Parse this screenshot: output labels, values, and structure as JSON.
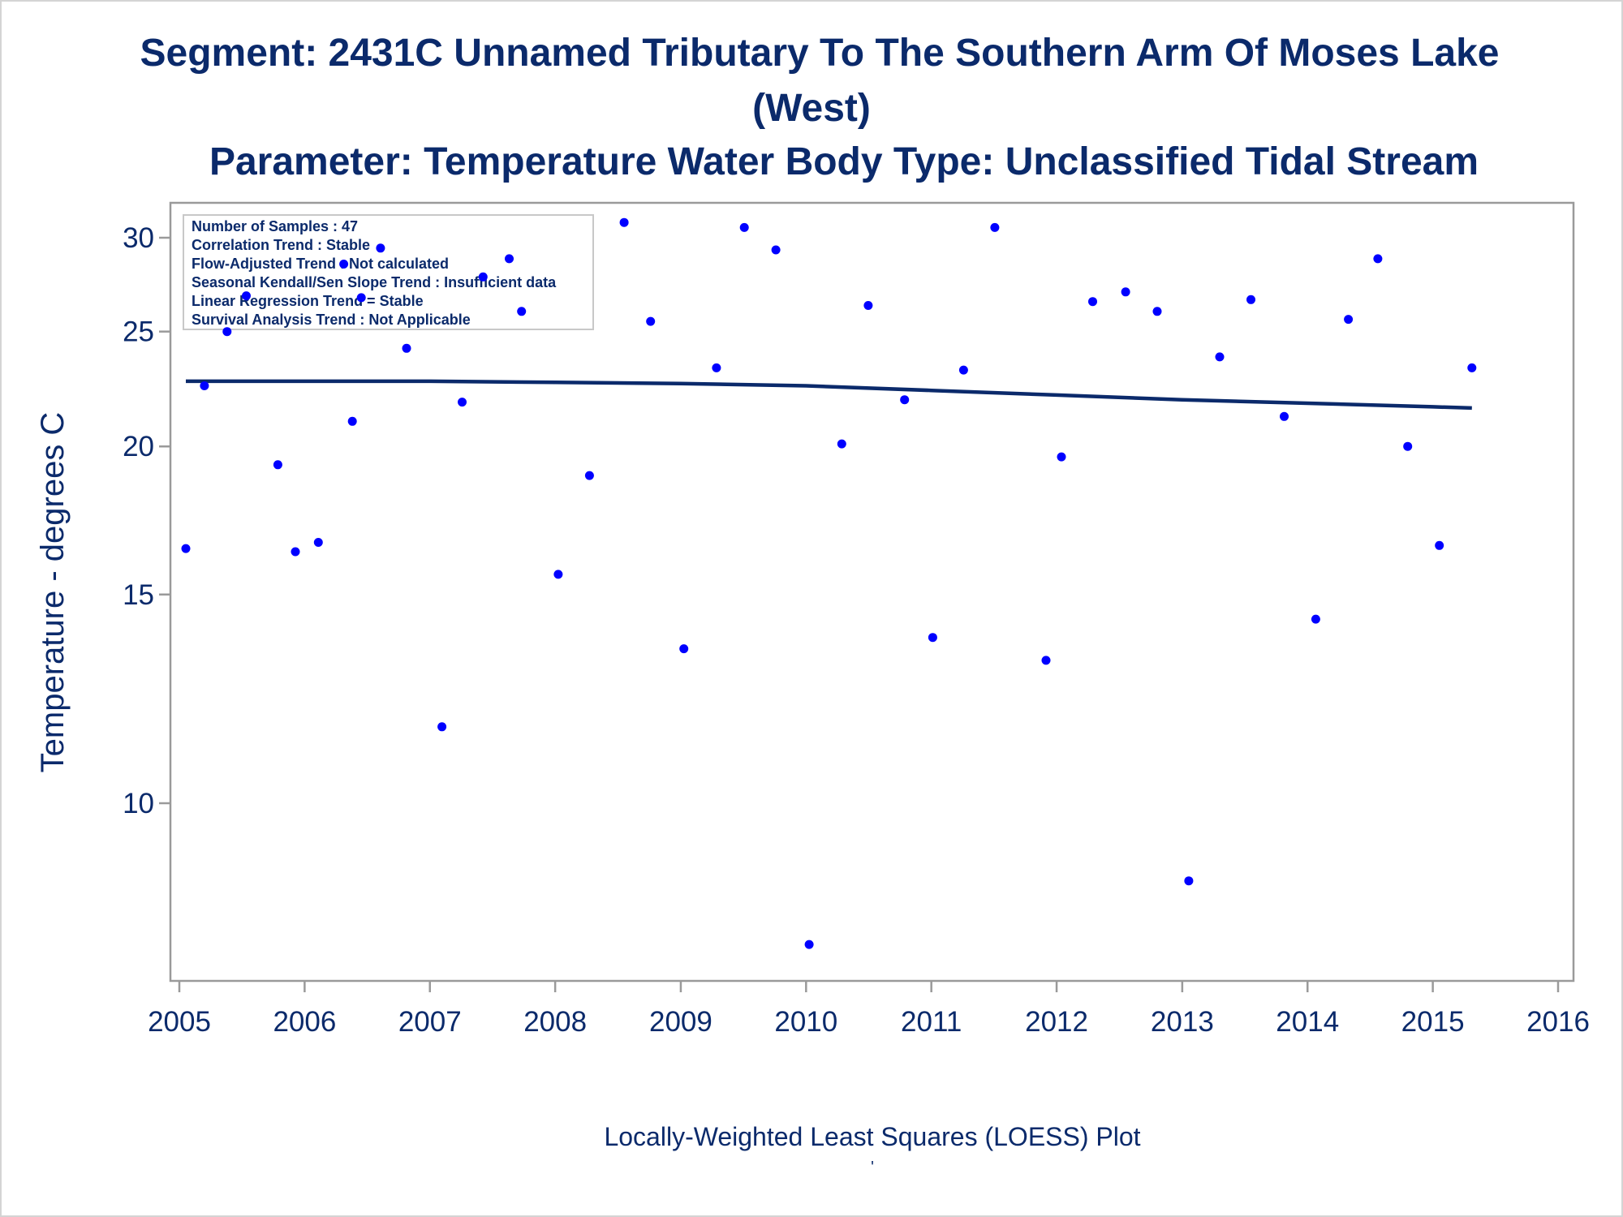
{
  "chart_data": {
    "type": "scatter",
    "title": "Segment: 2431C  Unnamed Tributary To The Southern Arm Of Moses Lake (West)",
    "title_line1": "Segment: 2431C  Unnamed Tributary To The Southern Arm Of Moses Lake",
    "title_line2": "(West)",
    "subtitle": "Parameter: Temperature   Water Body Type: Unclassified Tidal Stream",
    "xlabel": "",
    "ylabel": "Temperature - degrees C",
    "footnote": "Locally-Weighted Least Squares (LOESS) Plot",
    "footnote_mark": "'",
    "x_axis": {
      "type": "date",
      "range": [
        "2005-01-01",
        "2016-01-01"
      ],
      "ticks": [
        "2005",
        "2006",
        "2007",
        "2008",
        "2009",
        "2010",
        "2011",
        "2012",
        "2013",
        "2014",
        "2015",
        "2016"
      ]
    },
    "y_axis": {
      "scale": "log",
      "range": [
        7.3,
        31.5
      ],
      "ticks": [
        10,
        15,
        20,
        25,
        30
      ]
    },
    "grid": false,
    "legend": "none",
    "colors": {
      "points": "#0000ff",
      "trend_line": "#0b2a6b",
      "text": "#0b2a6b",
      "axes": "#9a9a9a"
    },
    "info_box": {
      "placement": "top-left",
      "lines": [
        "Number of Samples : 47",
        "Correlation Trend : Stable",
        "Flow-Adjusted Trend : Not calculated",
        "Seasonal Kendall/Sen Slope Trend : Insufficient data",
        "Linear Regression Trend = Stable",
        "Survival Analysis Trend : Not Applicable"
      ]
    },
    "series": [
      {
        "type": "scatter",
        "points": [
          {
            "x": "2005-01-20",
            "y": 16.4
          },
          {
            "x": "2005-03-15",
            "y": 22.5
          },
          {
            "x": "2005-05-20",
            "y": 25.0
          },
          {
            "x": "2005-07-15",
            "y": 26.8
          },
          {
            "x": "2005-10-15",
            "y": 19.3
          },
          {
            "x": "2005-12-05",
            "y": 16.3
          },
          {
            "x": "2006-02-10",
            "y": 16.6
          },
          {
            "x": "2006-04-25",
            "y": 28.5
          },
          {
            "x": "2006-05-20",
            "y": 21.0
          },
          {
            "x": "2006-06-15",
            "y": 26.7
          },
          {
            "x": "2006-08-10",
            "y": 29.4
          },
          {
            "x": "2006-10-25",
            "y": 24.2
          },
          {
            "x": "2007-02-05",
            "y": 11.6
          },
          {
            "x": "2007-04-05",
            "y": 21.8
          },
          {
            "x": "2007-06-05",
            "y": 27.8
          },
          {
            "x": "2007-08-20",
            "y": 28.8
          },
          {
            "x": "2007-09-25",
            "y": 26.0
          },
          {
            "x": "2008-01-10",
            "y": 15.6
          },
          {
            "x": "2008-04-10",
            "y": 18.9
          },
          {
            "x": "2008-07-20",
            "y": 30.9
          },
          {
            "x": "2008-10-05",
            "y": 25.5
          },
          {
            "x": "2009-01-10",
            "y": 13.5
          },
          {
            "x": "2009-04-15",
            "y": 23.3
          },
          {
            "x": "2009-07-05",
            "y": 30.6
          },
          {
            "x": "2009-10-05",
            "y": 29.3
          },
          {
            "x": "2010-01-10",
            "y": 7.6
          },
          {
            "x": "2010-04-15",
            "y": 20.1
          },
          {
            "x": "2010-07-01",
            "y": 26.3
          },
          {
            "x": "2010-10-15",
            "y": 21.9
          },
          {
            "x": "2011-01-05",
            "y": 13.8
          },
          {
            "x": "2011-04-05",
            "y": 23.2
          },
          {
            "x": "2011-07-05",
            "y": 30.6
          },
          {
            "x": "2011-12-01",
            "y": 13.2
          },
          {
            "x": "2012-01-15",
            "y": 19.6
          },
          {
            "x": "2012-04-15",
            "y": 26.5
          },
          {
            "x": "2012-07-20",
            "y": 27.0
          },
          {
            "x": "2012-10-20",
            "y": 26.0
          },
          {
            "x": "2013-01-20",
            "y": 8.6
          },
          {
            "x": "2013-04-20",
            "y": 23.8
          },
          {
            "x": "2013-07-20",
            "y": 26.6
          },
          {
            "x": "2013-10-25",
            "y": 21.2
          },
          {
            "x": "2014-01-25",
            "y": 14.3
          },
          {
            "x": "2014-04-30",
            "y": 25.6
          },
          {
            "x": "2014-07-25",
            "y": 28.8
          },
          {
            "x": "2014-10-20",
            "y": 20.0
          },
          {
            "x": "2015-01-20",
            "y": 16.5
          },
          {
            "x": "2015-04-25",
            "y": 23.3
          }
        ]
      },
      {
        "type": "line",
        "points": [
          {
            "x": "2005-01-20",
            "y": 22.7
          },
          {
            "x": "2007-01-01",
            "y": 22.7
          },
          {
            "x": "2008-01-01",
            "y": 22.65
          },
          {
            "x": "2009-01-01",
            "y": 22.6
          },
          {
            "x": "2010-01-01",
            "y": 22.5
          },
          {
            "x": "2011-01-01",
            "y": 22.3
          },
          {
            "x": "2012-01-01",
            "y": 22.1
          },
          {
            "x": "2013-01-01",
            "y": 21.9
          },
          {
            "x": "2014-01-01",
            "y": 21.75
          },
          {
            "x": "2015-01-01",
            "y": 21.6
          },
          {
            "x": "2015-04-25",
            "y": 21.55
          }
        ]
      }
    ]
  }
}
